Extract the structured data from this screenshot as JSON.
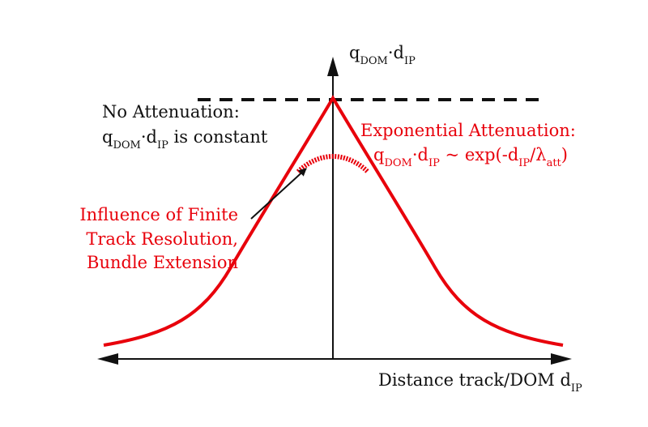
{
  "colors": {
    "axis": "#111111",
    "curve": "#e8000b",
    "annotation_red": "#e8000b"
  },
  "y_axis": {
    "label_main_q": "q",
    "label_sub_dom": "DOM",
    "label_dot_d": "·d",
    "label_sub_ip": "IP"
  },
  "x_axis": {
    "label_main": "Distance track/DOM d",
    "label_sub": "IP"
  },
  "no_attenuation": {
    "line1": "No Attenuation:",
    "line2_q": "q",
    "line2_sub_dom": "DOM",
    "line2_dot_d": "·d",
    "line2_sub_ip": "IP",
    "line2_rest": " is constant"
  },
  "exponential": {
    "line1": "Exponential Attenuation:",
    "q": "q",
    "sub_dom": "DOM",
    "dot_d": "·d",
    "sub_ip": "IP",
    "approx_exp": " ~ exp(-d",
    "sub_ip2": "IP",
    "slash_lambda": "/λ",
    "sub_att": "att",
    "close": ")"
  },
  "finite_resolution": {
    "line1": "Influence of Finite",
    "line2": "Track Resolution,",
    "line3": "Bundle Extension"
  }
}
